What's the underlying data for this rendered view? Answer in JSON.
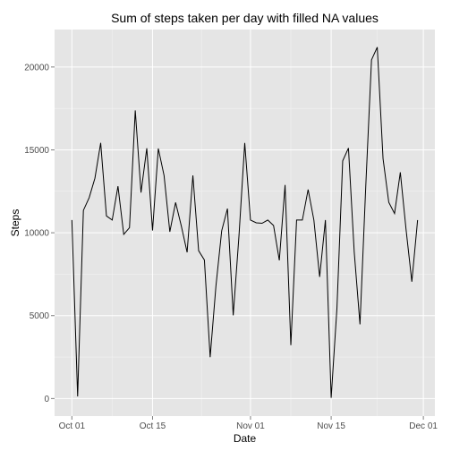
{
  "chart_data": {
    "type": "line",
    "title": "Sum of steps taken per day with filled NA values",
    "xlabel": "Date",
    "ylabel": "Steps",
    "x_ticks": [
      "Oct 01",
      "Oct 15",
      "Nov 01",
      "Nov 15",
      "Dec 01"
    ],
    "x_tick_dates": [
      "2012-10-01",
      "2012-10-15",
      "2012-11-01",
      "2012-11-15",
      "2012-12-01"
    ],
    "y_ticks": [
      "0",
      "5000",
      "10000",
      "15000",
      "20000"
    ],
    "y_tick_values": [
      0,
      5000,
      10000,
      15000,
      20000
    ],
    "xlim": [
      "2012-09-28",
      "2012-12-03"
    ],
    "ylim": [
      -1060,
      22260
    ],
    "grid": true,
    "colors": {
      "panel": "#e5e5e5",
      "grid_major": "#ffffff",
      "grid_minor": "#f2f2f2",
      "line": "#000000"
    },
    "series": [
      {
        "x": [
          "2012-10-01",
          "2012-10-02",
          "2012-10-03",
          "2012-10-04",
          "2012-10-05",
          "2012-10-06",
          "2012-10-07",
          "2012-10-08",
          "2012-10-09",
          "2012-10-10",
          "2012-10-11",
          "2012-10-12",
          "2012-10-13",
          "2012-10-14",
          "2012-10-15",
          "2012-10-16",
          "2012-10-17",
          "2012-10-18",
          "2012-10-19",
          "2012-10-20",
          "2012-10-21",
          "2012-10-22",
          "2012-10-23",
          "2012-10-24",
          "2012-10-25",
          "2012-10-26",
          "2012-10-27",
          "2012-10-28",
          "2012-10-29",
          "2012-10-30",
          "2012-10-31",
          "2012-11-01",
          "2012-11-02",
          "2012-11-03",
          "2012-11-04",
          "2012-11-05",
          "2012-11-06",
          "2012-11-07",
          "2012-11-08",
          "2012-11-09",
          "2012-11-10",
          "2012-11-11",
          "2012-11-12",
          "2012-11-13",
          "2012-11-14",
          "2012-11-15",
          "2012-11-16",
          "2012-11-17",
          "2012-11-18",
          "2012-11-19",
          "2012-11-20",
          "2012-11-21",
          "2012-11-22",
          "2012-11-23",
          "2012-11-24",
          "2012-11-25",
          "2012-11-26",
          "2012-11-27",
          "2012-11-28",
          "2012-11-29",
          "2012-11-30"
        ],
        "values": [
          10766,
          126,
          11352,
          12116,
          13294,
          15420,
          11015,
          10766,
          12811,
          9900,
          10304,
          17382,
          12426,
          15098,
          10139,
          15084,
          13452,
          10056,
          11829,
          10395,
          8821,
          13460,
          8918,
          8355,
          2492,
          6778,
          10119,
          11458,
          5018,
          9819,
          15414,
          10766,
          10600,
          10571,
          10766,
          10439,
          8334,
          12883,
          3219,
          10766,
          10766,
          12608,
          10765,
          7336,
          10766,
          41,
          5441,
          14339,
          15110,
          8841,
          4472,
          12787,
          20427,
          21194,
          14478,
          11834,
          11162,
          13646,
          10183,
          7047,
          10766
        ]
      }
    ]
  }
}
